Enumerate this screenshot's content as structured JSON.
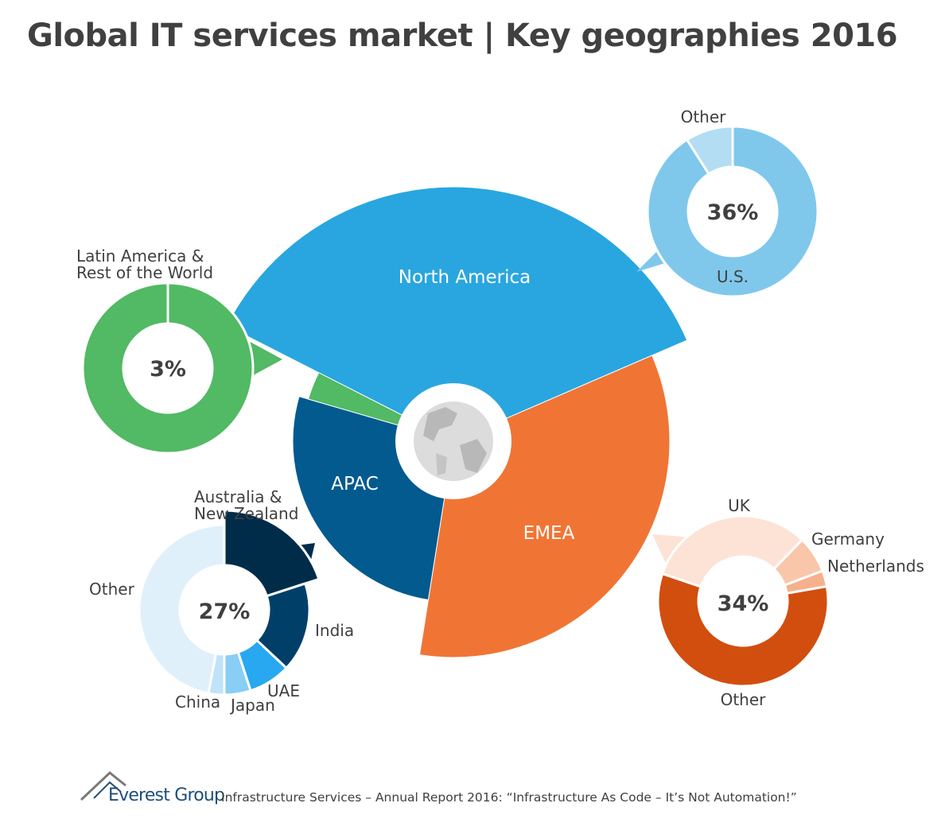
{
  "title": "Global IT services market | Key geographies 2016",
  "chart_data": {
    "type": "pie",
    "regions": [
      {
        "name": "North America",
        "share": 36,
        "percent_label": "36%",
        "color": "#29a6df",
        "breakdown": [
          {
            "name": "U.S.",
            "value": 91,
            "color": "#7fc8ec"
          },
          {
            "name": "Other",
            "value": 9,
            "color": "#b3ddf3"
          }
        ]
      },
      {
        "name": "EMEA",
        "share": 34,
        "percent_label": "34%",
        "color": "#f07535",
        "breakdown": [
          {
            "name": "Other",
            "value": 58,
            "color": "#d24e0f"
          },
          {
            "name": "UK",
            "value": 32,
            "color": "#fde3d6"
          },
          {
            "name": "Germany",
            "value": 7,
            "color": "#f9c6aa"
          },
          {
            "name": "Netherlands",
            "value": 3,
            "color": "#f6b08d"
          }
        ]
      },
      {
        "name": "APAC",
        "share": 27,
        "percent_label": "27%",
        "color": "#025a8f",
        "breakdown": [
          {
            "name": "Australia & New Zealand",
            "value": 20,
            "color": "#002c4a"
          },
          {
            "name": "India",
            "value": 17,
            "color": "#004068"
          },
          {
            "name": "UAE",
            "value": 8,
            "color": "#28a8f0"
          },
          {
            "name": "Japan",
            "value": 5,
            "color": "#88cef5"
          },
          {
            "name": "China",
            "value": 3,
            "color": "#bfe3f9"
          },
          {
            "name": "Other",
            "value": 47,
            "color": "#dff0fb"
          }
        ]
      },
      {
        "name": "Latin America & Rest of the World",
        "share": 3,
        "percent_label": "3%",
        "color": "#52b964",
        "breakdown": [
          {
            "name": "Latin America & Rest of the World",
            "value": 100,
            "color": "#52b964"
          }
        ]
      }
    ],
    "labels": {
      "na_region": "North America",
      "emea_region": "EMEA",
      "apac_region": "APAC",
      "latam_line1": "Latin America &",
      "latam_line2": "Rest of the World",
      "us": "U.S.",
      "na_other": "Other",
      "uk": "UK",
      "germany": "Germany",
      "netherlands": "Netherlands",
      "emea_other": "Other",
      "anz_line1": "Australia &",
      "anz_line2": "New Zealand",
      "india": "India",
      "uae": "UAE",
      "japan": "Japan",
      "china": "China",
      "apac_other": "Other"
    }
  },
  "footer": {
    "brand": "Everest Group",
    "text": "Infrastructure Services – Annual Report 2016: “Infrastructure As Code – It’s Not Automation!”",
    "logo_icon": "mountain-logo-icon"
  }
}
